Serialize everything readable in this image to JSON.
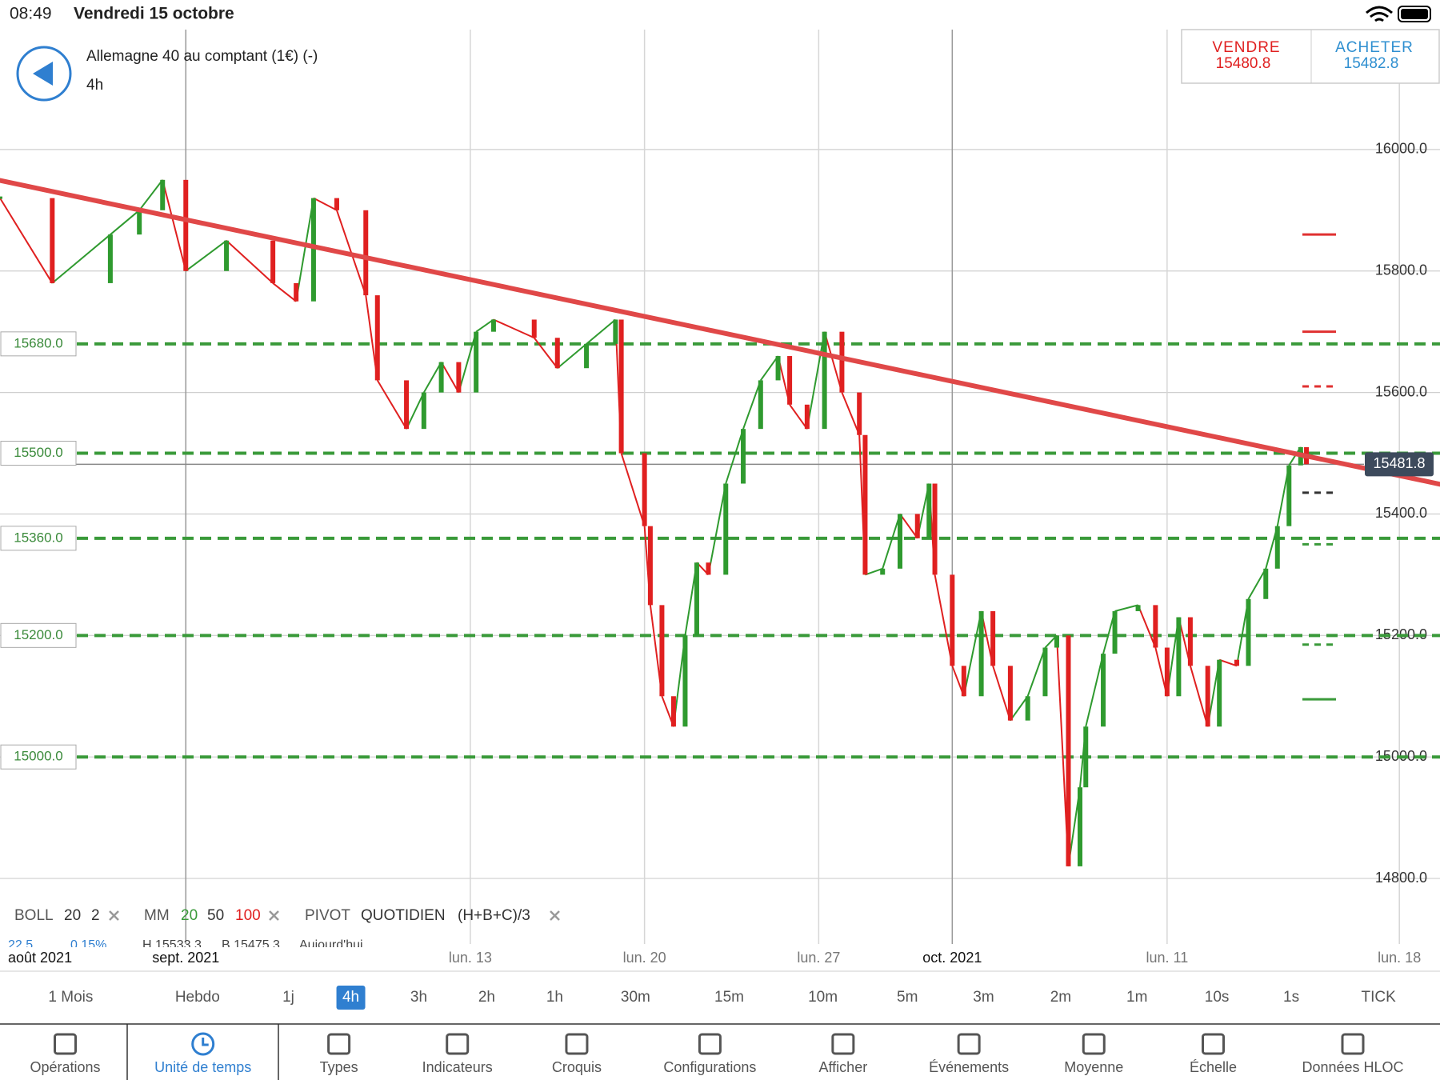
{
  "status": {
    "time": "08:49",
    "date": "Vendredi 15 octobre"
  },
  "header": {
    "instrument": "Allemagne 40 au comptant (1€) (-)",
    "timeframe": "4h"
  },
  "quote": {
    "sell_label": "VENDRE",
    "sell": 15480.8,
    "buy_label": "ACHETER",
    "buy": 15482.8
  },
  "chart_data": {
    "type": "line",
    "x": [
      0,
      9,
      19,
      24,
      28,
      32,
      39,
      47,
      51,
      54,
      58,
      63,
      65,
      70,
      73,
      76,
      79,
      82,
      85,
      92,
      96,
      101,
      106,
      107,
      111,
      112,
      114,
      116,
      118,
      120,
      122,
      125,
      128,
      131,
      134,
      136,
      139,
      142,
      145,
      148,
      149,
      152,
      155,
      158,
      160,
      161,
      164,
      166,
      169,
      171,
      174,
      177,
      180,
      182,
      184,
      186,
      187,
      190,
      192,
      196,
      199,
      201,
      203,
      205,
      208,
      210,
      213,
      215,
      218,
      220,
      222,
      224,
      225
    ],
    "values": [
      15920,
      15780,
      15860,
      15900,
      15950,
      15800,
      15850,
      15780,
      15750,
      15920,
      15900,
      15760,
      15620,
      15540,
      15600,
      15650,
      15600,
      15700,
      15720,
      15690,
      15640,
      15680,
      15720,
      15500,
      15380,
      15250,
      15100,
      15050,
      15200,
      15320,
      15300,
      15450,
      15540,
      15620,
      15660,
      15580,
      15540,
      15700,
      15600,
      15530,
      15300,
      15310,
      15400,
      15360,
      15450,
      15300,
      15150,
      15100,
      15240,
      15150,
      15060,
      15100,
      15180,
      15200,
      14820,
      14950,
      15050,
      15170,
      15240,
      15250,
      15180,
      15100,
      15230,
      15150,
      15050,
      15160,
      15150,
      15260,
      15310,
      15380,
      15480,
      15510,
      15482
    ],
    "up_color": "#2f9a2f",
    "down_color": "#e02020",
    "xlim": [
      0,
      248
    ],
    "xticks": [
      {
        "value": 0,
        "label": "août 2021"
      },
      {
        "value": 32,
        "label": "sept. 2021"
      },
      {
        "value": 81,
        "label": "lun. 13"
      },
      {
        "value": 111,
        "label": "lun. 20"
      },
      {
        "value": 141,
        "label": "lun. 27"
      },
      {
        "value": 164,
        "label": "oct. 2021"
      },
      {
        "value": 201,
        "label": "lun. 11"
      },
      {
        "value": 241,
        "label": "lun. 18"
      }
    ],
    "ylim": [
      14700,
      16200
    ],
    "yticks": [
      {
        "value": 14800,
        "label": "14800.0"
      },
      {
        "value": 15000,
        "label": "15000.0"
      },
      {
        "value": 15200,
        "label": "15200.0"
      },
      {
        "value": 15400,
        "label": "15400.0"
      },
      {
        "value": 15600,
        "label": "15600.0"
      },
      {
        "value": 15800,
        "label": "15800.0"
      },
      {
        "value": 16000,
        "label": "16000.0"
      }
    ],
    "grid": true,
    "trendline": {
      "x": [
        0,
        248
      ],
      "values": [
        15949,
        15449
      ],
      "color": "#e04848"
    },
    "current_price": 15481.8,
    "pivot_color": "#3a9a3a",
    "pivots": [
      {
        "value": 15680,
        "label": "15680.0"
      },
      {
        "value": 15500,
        "label": "15500.0"
      },
      {
        "value": 15360,
        "label": "15360.0"
      },
      {
        "value": 15200,
        "label": "15200.0"
      },
      {
        "value": 15000,
        "label": "15000.0"
      }
    ],
    "pivot_markers": [
      {
        "value": 15860,
        "color": "#e03030",
        "dashed": false
      },
      {
        "value": 15700,
        "color": "#e03030",
        "dashed": false
      },
      {
        "value": 15610,
        "color": "#e03030",
        "dashed": true
      },
      {
        "value": 15435,
        "color": "#333333",
        "dashed": true
      },
      {
        "value": 15350,
        "color": "#3a9a3a",
        "dashed": true
      },
      {
        "value": 15185,
        "color": "#3a9a3a",
        "dashed": true
      },
      {
        "value": 15095,
        "color": "#3a9a3a",
        "dashed": false
      }
    ]
  },
  "indicators": {
    "boll": {
      "name": "BOLL",
      "period": 20,
      "dev": 2
    },
    "mm": {
      "name": "MM",
      "p1": 20,
      "p2": 50,
      "p3": 100
    },
    "pivot": {
      "name": "PIVOT",
      "mode": "QUOTIDIEN",
      "formula": "(H+B+C)/3"
    },
    "info": [
      "22.5",
      "0.15%",
      "H 15533.3",
      "B 15475.3",
      "Aujourd'hui"
    ]
  },
  "timeframes": [
    {
      "label": "1 Mois"
    },
    {
      "label": "Hebdo"
    },
    {
      "label": "1j"
    },
    {
      "label": "4h",
      "selected": true
    },
    {
      "label": "3h"
    },
    {
      "label": "2h"
    },
    {
      "label": "1h"
    },
    {
      "label": "30m"
    },
    {
      "label": "15m"
    },
    {
      "label": "10m"
    },
    {
      "label": "5m"
    },
    {
      "label": "3m"
    },
    {
      "label": "2m"
    },
    {
      "label": "1m"
    },
    {
      "label": "10s"
    },
    {
      "label": "1s"
    },
    {
      "label": "TICK"
    }
  ],
  "toolbar": [
    {
      "label": "Opérations"
    },
    {
      "label": "Unité de temps",
      "selected": true
    },
    {
      "label": "Types"
    },
    {
      "label": "Indicateurs"
    },
    {
      "label": "Croquis"
    },
    {
      "label": "Configurations"
    },
    {
      "label": "Afficher"
    },
    {
      "label": "Événements"
    },
    {
      "label": "Moyenne"
    },
    {
      "label": "Échelle"
    },
    {
      "label": "Données HLOC"
    }
  ]
}
